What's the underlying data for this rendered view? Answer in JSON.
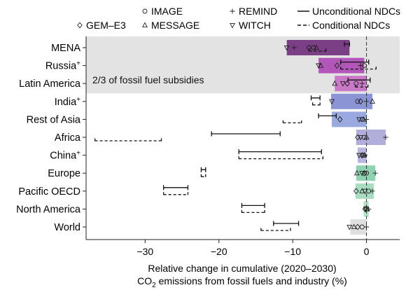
{
  "chart_data": {
    "type": "range-bar",
    "xlabel_line1": "Relative change in cumulative (2020–2030)",
    "xlabel_line2_prefix": "CO",
    "xlabel_line2_sub": "2",
    "xlabel_line2_suffix": " emissions from fossil fuels and industry (%)",
    "xlim": [
      -38,
      4.5
    ],
    "xticks": [
      -30,
      -20,
      -10,
      0
    ],
    "xtick_labels": [
      "−30",
      "−20",
      "−10",
      "0"
    ],
    "band_label": "2/3 of fossil fuel subsidies",
    "band_regions": [
      "MENA",
      "Russia",
      "Latin America"
    ],
    "legend": {
      "models": [
        {
          "name": "GEM–E3",
          "marker": "diamond"
        },
        {
          "name": "IMAGE",
          "marker": "circle"
        },
        {
          "name": "MESSAGE",
          "marker": "triangle-up"
        },
        {
          "name": "REMIND",
          "marker": "plus"
        },
        {
          "name": "WITCH",
          "marker": "triangle-down"
        }
      ],
      "lines": [
        {
          "name": "Unconditional NDCs",
          "style": "solid"
        },
        {
          "name": "Conditional NDCs",
          "style": "dashed"
        }
      ]
    },
    "regions": [
      {
        "name": "MENA",
        "sup": "",
        "color": "#7b3f86",
        "bar": [
          -10.8,
          -2.3
        ],
        "unconditional": [
          -3.0,
          -2.3
        ],
        "conditional": [
          -7.8,
          -5.5
        ],
        "markers": {
          "WITCH": -10.8,
          "REMIND": -9.8,
          "IMAGE": -7.2,
          "MESSAGE": -6.8,
          "GEM–E3": -7.8
        }
      },
      {
        "name": "Russia",
        "sup": "+",
        "color": "#b257b9",
        "bar": [
          -6.5,
          -0.3
        ],
        "unconditional": [
          -3.5,
          0.3
        ],
        "conditional": [
          -3.5,
          1.3
        ],
        "markers": {
          "WITCH": -6.5,
          "MESSAGE": -6.2,
          "GEM–E3": -4.0,
          "IMAGE": -0.3,
          "REMIND": -0.8
        }
      },
      {
        "name": "Latin America",
        "sup": "",
        "color": "#c979c8",
        "bar": [
          -4.3,
          0.0
        ],
        "unconditional": [
          -2.5,
          0.5
        ],
        "conditional": [
          -1.5,
          0.2
        ],
        "markers": {
          "MESSAGE": -4.3,
          "WITCH": -3.2,
          "GEM–E3": -2.6,
          "IMAGE": -1.4,
          "REMIND": -0.6
        }
      },
      {
        "name": "India",
        "sup": "+",
        "color": "#8b94d4",
        "bar": [
          -4.8,
          0.8
        ],
        "unconditional": [
          -7.5,
          -6.3
        ],
        "conditional": [
          -7.3,
          -6.3
        ],
        "markers": {
          "WITCH": -4.7,
          "IMAGE": -1.2,
          "GEM–E3": -0.8,
          "MESSAGE": 0.8,
          "REMIND": 0.0
        }
      },
      {
        "name": "Rest of Asia",
        "sup": "",
        "color": "#9aaae0",
        "bar": [
          -4.7,
          0.0
        ],
        "unconditional": [
          -6.5,
          -4.1
        ],
        "conditional": [
          -11.3,
          -8.8
        ],
        "markers": {
          "GEM–E3": -3.6,
          "WITCH": -1.0,
          "IMAGE": -0.6,
          "MESSAGE": -0.4,
          "REMIND": 0.0
        }
      },
      {
        "name": "Africa",
        "sup": "",
        "color": "#b1aedb",
        "bar": [
          -1.4,
          2.6
        ],
        "unconditional": [
          -21.0,
          -11.7
        ],
        "conditional": [
          -36.8,
          -27.8
        ],
        "markers": {
          "GEM–E3": -1.2,
          "WITCH": -0.8,
          "IMAGE": -0.3,
          "MESSAGE": 0.0,
          "REMIND": 2.6
        }
      },
      {
        "name": "China",
        "sup": "+",
        "color": "#b8b6e0",
        "bar": [
          -1.2,
          0.0
        ],
        "unconditional": [
          -17.3,
          -6.1
        ],
        "conditional": [
          -17.3,
          -5.9
        ],
        "markers": {
          "WITCH": -1.0,
          "GEM–E3": -0.6,
          "IMAGE": -0.4,
          "MESSAGE": -0.3,
          "REMIND": -0.2
        }
      },
      {
        "name": "Europe",
        "sup": "",
        "color": "#8fd1b0",
        "bar": [
          -1.4,
          1.2
        ],
        "unconditional": [
          -22.4,
          -21.8
        ],
        "conditional": [
          -22.4,
          -21.8
        ],
        "markers": {
          "MESSAGE": -1.3,
          "WITCH": -0.6,
          "GEM–E3": -0.3,
          "IMAGE": 0.0,
          "REMIND": 1.2
        }
      },
      {
        "name": "Pacific OECD",
        "sup": "",
        "color": "#a9dcc1",
        "bar": [
          -1.5,
          1.0
        ],
        "unconditional": [
          -27.5,
          -24.2
        ],
        "conditional": [
          -27.5,
          -24.2
        ],
        "markers": {
          "GEM–E3": -1.4,
          "MESSAGE": -0.6,
          "WITCH": -0.2,
          "IMAGE": 0.3,
          "REMIND": 0.8
        }
      },
      {
        "name": "North America",
        "sup": "",
        "color": "#b5e3c8",
        "bar": [
          -0.4,
          0.3
        ],
        "unconditional": [
          -16.9,
          -13.8
        ],
        "conditional": [
          -16.9,
          -13.8
        ],
        "markers": {
          "GEM–E3": -0.2,
          "MESSAGE": 0.1,
          "WITCH": -0.1,
          "IMAGE": 0.0,
          "REMIND": 0.3
        }
      },
      {
        "name": "World",
        "sup": "",
        "color": "#e0e0e0",
        "bar": [
          -2.2,
          0.0
        ],
        "unconditional": [
          -12.6,
          -9.2
        ],
        "conditional": [
          -14.3,
          -10.3
        ],
        "markers": {
          "WITCH": -2.3,
          "MESSAGE": -1.7,
          "GEM–E3": -1.2,
          "IMAGE": -0.6,
          "REMIND": 0.0
        }
      }
    ]
  }
}
